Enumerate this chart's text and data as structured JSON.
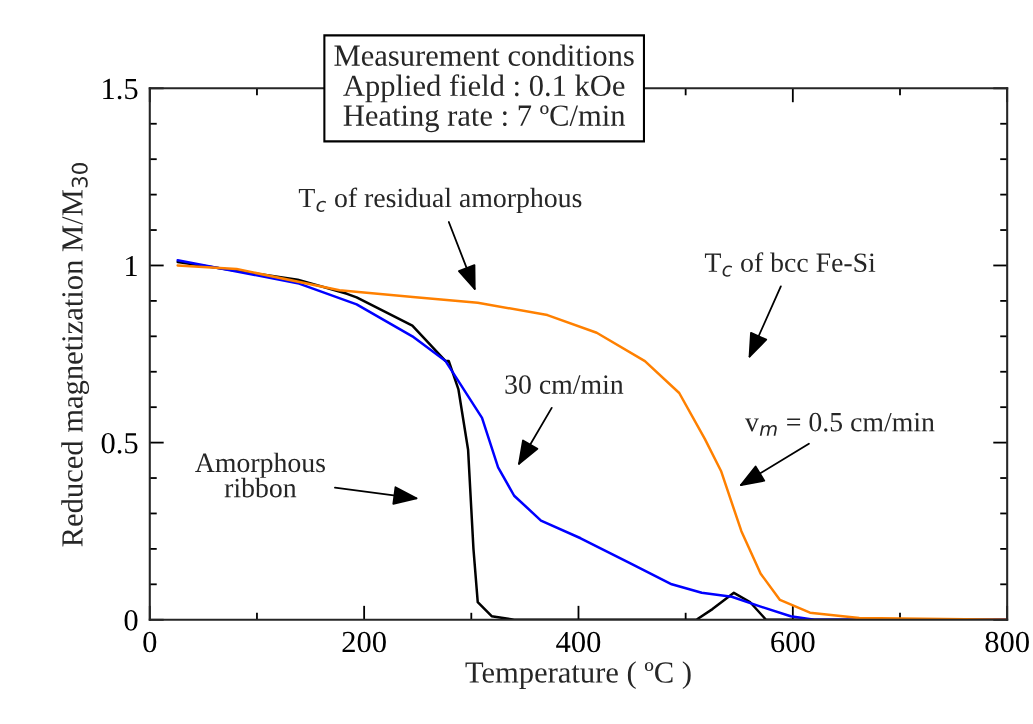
{
  "chart_data": {
    "type": "line",
    "xlabel": "Temperature ( ºC )",
    "ylabel": "Reduced magnetization M/M$_{30}$",
    "xlim": [
      0,
      800
    ],
    "ylim": [
      0,
      1.5
    ],
    "xticks": [
      0,
      {
        "value": 100,
        "label": null
      },
      200,
      {
        "value": 300,
        "label": null
      },
      400,
      {
        "value": 500,
        "label": null
      },
      600,
      {
        "value": 700,
        "label": null
      },
      800
    ],
    "yticks": [
      0,
      {
        "value": 0.1,
        "label": null
      },
      {
        "value": 0.2,
        "label": null
      },
      {
        "value": 0.3,
        "label": null
      },
      {
        "value": 0.4,
        "label": null
      },
      0.5,
      {
        "value": 0.6,
        "label": null
      },
      {
        "value": 0.7,
        "label": null
      },
      {
        "value": 0.8,
        "label": null
      },
      {
        "value": 0.9,
        "label": null
      },
      1,
      {
        "value": 1.1,
        "label": null
      },
      {
        "value": 1.2,
        "label": null
      },
      {
        "value": 1.3,
        "label": null
      },
      {
        "value": 1.4,
        "label": null
      },
      1.5
    ],
    "grid": false,
    "legend": false,
    "marker": "none",
    "line_style": "solid",
    "series": [
      {
        "color": "#000000",
        "x": [
          26,
          92,
          138,
          184,
          193,
          245,
          276,
          279,
          288,
          297,
          302,
          306,
          319,
          340,
          400,
          450,
          510,
          525,
          545,
          560,
          575,
          650,
          800
        ],
        "values": [
          1.01,
          0.98,
          0.96,
          0.92,
          0.91,
          0.83,
          0.73,
          0.73,
          0.65,
          0.48,
          0.2,
          0.05,
          0.01,
          0,
          0,
          0,
          0,
          0.03,
          0.076,
          0.05,
          0,
          0,
          0
        ]
      },
      {
        "color": "#0000ff",
        "x": [
          26,
          138,
          193,
          245,
          276,
          310,
          325,
          340,
          365,
          402,
          448,
          487,
          515,
          543,
          570,
          598,
          620,
          700,
          800
        ],
        "values": [
          1.015,
          0.95,
          0.89,
          0.8,
          0.73,
          0.57,
          0.43,
          0.35,
          0.28,
          0.23,
          0.16,
          0.1,
          0.076,
          0.065,
          0.037,
          0.01,
          0,
          0,
          0
        ]
      },
      {
        "color": "#ff8000",
        "x": [
          26,
          81,
          177,
          248,
          306,
          371,
          417,
          462,
          494,
          518,
          533,
          552,
          570,
          588,
          616,
          662,
          800
        ],
        "values": [
          1.0,
          0.99,
          0.93,
          0.91,
          0.895,
          0.86,
          0.81,
          0.73,
          0.64,
          0.51,
          0.42,
          0.25,
          0.13,
          0.056,
          0.02,
          0.005,
          0
        ]
      }
    ],
    "annotations": [
      "Measurement conditions\nApplied field : 0.1 kOe\nHeating rate : 7 ºC/min",
      "T$_{c}$ of residual amorphous",
      "T$_{c}$ of bcc Fe-Si",
      "30 cm/min",
      "v$_{m}$ = 0.5 cm/min",
      "Amorphous\nribbon"
    ]
  }
}
